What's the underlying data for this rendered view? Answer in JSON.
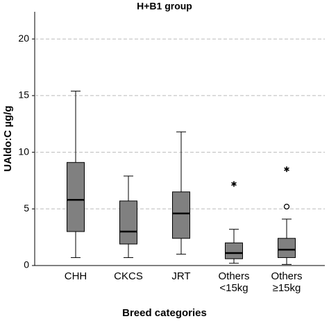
{
  "chart_data": {
    "type": "box",
    "title": "H+B1 group",
    "x_label": "Breed categories",
    "y_label": "UAldo:C µg/g",
    "categories": [
      "CHH",
      "CKCS",
      "JRT",
      "Others <15kg",
      "Others ≥15kg"
    ],
    "color": "#808080",
    "boxes": [
      {
        "whisker_low": 0.7,
        "q1": 3.0,
        "median": 5.8,
        "q3": 9.1,
        "whisker_high": 15.4,
        "outliers": [],
        "extremes": []
      },
      {
        "whisker_low": 0.7,
        "q1": 1.9,
        "median": 3.0,
        "q3": 5.7,
        "whisker_high": 7.9,
        "outliers": [],
        "extremes": []
      },
      {
        "whisker_low": 1.0,
        "q1": 2.4,
        "median": 4.6,
        "q3": 6.5,
        "whisker_high": 11.8,
        "outliers": [],
        "extremes": []
      },
      {
        "whisker_low": 0.2,
        "q1": 0.6,
        "median": 1.1,
        "q3": 2.0,
        "whisker_high": 3.2,
        "outliers": [],
        "extremes": [
          7.2
        ]
      },
      {
        "whisker_low": 0.1,
        "q1": 0.7,
        "median": 1.4,
        "q3": 2.4,
        "whisker_high": 4.1,
        "outliers": [
          5.2
        ],
        "extremes": [
          8.5
        ]
      }
    ],
    "ylim": [
      0,
      22.4
    ],
    "yticks": [
      0,
      5,
      10,
      15,
      20
    ],
    "grid": true
  }
}
